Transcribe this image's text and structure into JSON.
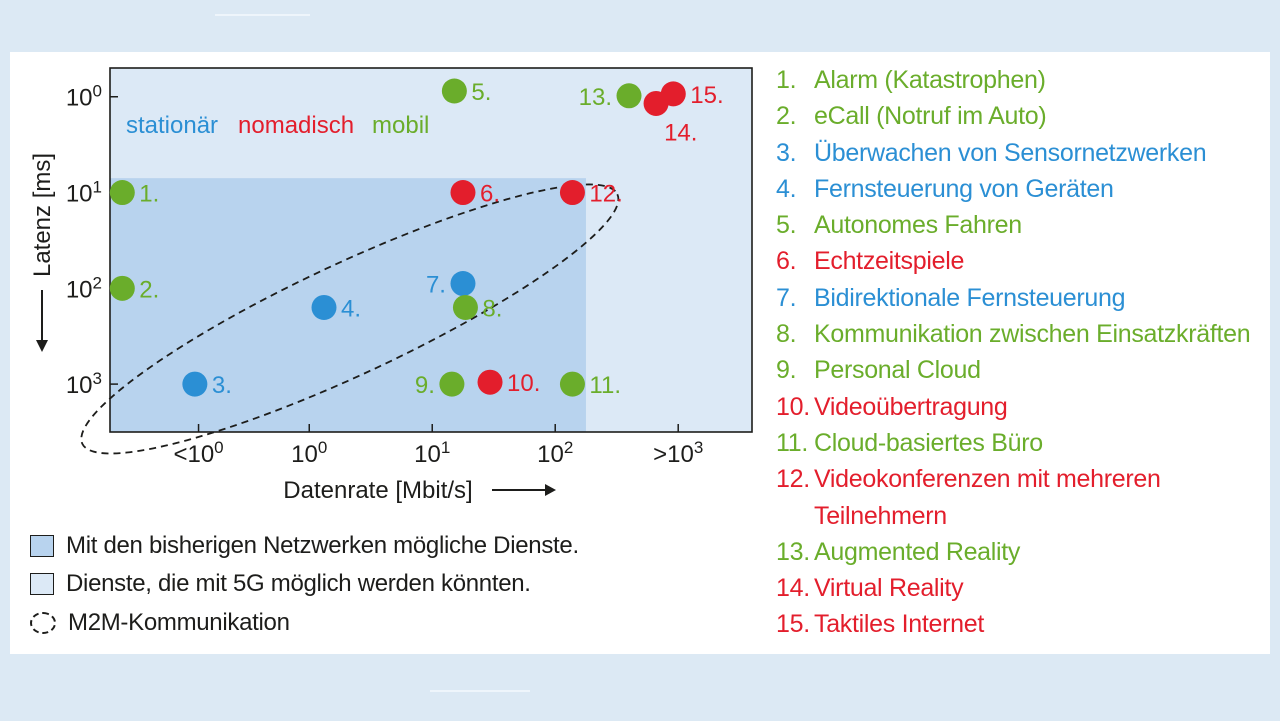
{
  "colors": {
    "stationaer": "#2b8fd4",
    "nomadisch": "#e31e2c",
    "mobil": "#6aad2b",
    "region_existing": "#b8d3ee",
    "region_5g": "#dce9f6",
    "axis": "#1d1d1b"
  },
  "categories_legend": [
    {
      "label": "stationär",
      "color_key": "stationaer"
    },
    {
      "label": "nomadisch",
      "color_key": "nomadisch"
    },
    {
      "label": "mobil",
      "color_key": "mobil"
    }
  ],
  "key": {
    "existing": "Mit den bisherigen Netzwerken mögliche Dienste.",
    "fiveg": "Dienste, die mit 5G möglich werden könnten.",
    "m2m": "M2M-Kommunikation"
  },
  "services": [
    {
      "num": "1.",
      "text": "Alarm (Katastrophen)",
      "cat": "mobil"
    },
    {
      "num": "2.",
      "text": "eCall (Notruf im Auto)",
      "cat": "mobil"
    },
    {
      "num": "3.",
      "text": "Überwachen von Sensornetzwerken",
      "cat": "stationaer"
    },
    {
      "num": "4.",
      "text": "Fernsteuerung von Geräten",
      "cat": "stationaer"
    },
    {
      "num": "5.",
      "text": "Autonomes Fahren",
      "cat": "mobil"
    },
    {
      "num": "6.",
      "text": "Echtzeitspiele",
      "cat": "nomadisch"
    },
    {
      "num": "7.",
      "text": "Bidirektionale Fernsteuerung",
      "cat": "stationaer"
    },
    {
      "num": "8.",
      "text": "Kommunikation zwischen Einsatzkräften",
      "cat": "mobil"
    },
    {
      "num": "9.",
      "text": "Personal Cloud",
      "cat": "mobil"
    },
    {
      "num": "10.",
      "text": "Videoübertragung",
      "cat": "nomadisch"
    },
    {
      "num": "11.",
      "text": "Cloud-basiertes Büro",
      "cat": "mobil"
    },
    {
      "num": "12.",
      "text": "Videokonferenzen mit mehreren",
      "cont": "Teilnehmern",
      "cat": "nomadisch"
    },
    {
      "num": "13.",
      "text": "Augmented Reality",
      "cat": "mobil"
    },
    {
      "num": "14.",
      "text": "Virtual Reality",
      "cat": "nomadisch"
    },
    {
      "num": "15.",
      "text": "Taktiles Internet",
      "cat": "nomadisch"
    }
  ],
  "chart_data": {
    "type": "scatter",
    "xlabel": "Datenrate [Mbit/s]",
    "ylabel": "Latenz [ms]",
    "x_scale": "log10",
    "y_scale": "log10",
    "xlim": [
      -1.62,
      3.6
    ],
    "ylim": [
      -0.3,
      3.5
    ],
    "x_ticks": [
      {
        "value": -0.9,
        "label_pre": "<10",
        "label_exp": "0"
      },
      {
        "value": 0,
        "label_pre": "10",
        "label_exp": "0"
      },
      {
        "value": 1,
        "label_pre": "10",
        "label_exp": "1"
      },
      {
        "value": 2,
        "label_pre": "10",
        "label_exp": "2"
      },
      {
        "value": 3,
        "label_pre": ">10",
        "label_exp": "3"
      }
    ],
    "y_ticks": [
      {
        "value": 0,
        "label_pre": "10",
        "label_exp": "0"
      },
      {
        "value": 1,
        "label_pre": "10",
        "label_exp": "1"
      },
      {
        "value": 2,
        "label_pre": "10",
        "label_exp": "2"
      },
      {
        "value": 3,
        "label_pre": "10",
        "label_exp": "3"
      }
    ],
    "regions": [
      {
        "name": "Dienste, die mit 5G möglich werden könnten.",
        "x0": -1.62,
        "x1": 3.6,
        "y0": -0.3,
        "y1": 3.5,
        "color_key": "region_5g"
      },
      {
        "name": "Mit den bisherigen Netzwerken mögliche Dienste.",
        "x0": -1.62,
        "x1": 2.25,
        "y0": 0.85,
        "y1": 3.5,
        "color_key": "region_existing"
      }
    ],
    "m2m_ellipse": {
      "cx": 0.33,
      "cy": 2.32,
      "rx_data": 2.4,
      "ry_data": 0.58,
      "angle_deg": -25
    },
    "points": [
      {
        "id": "1.",
        "x": -1.52,
        "y": 1.0,
        "cat": "mobil",
        "label_side": "right"
      },
      {
        "id": "2.",
        "x": -1.52,
        "y": 2.0,
        "cat": "mobil",
        "label_side": "right"
      },
      {
        "id": "3.",
        "x": -0.93,
        "y": 3.0,
        "cat": "stationaer",
        "label_side": "right"
      },
      {
        "id": "4.",
        "x": 0.12,
        "y": 2.2,
        "cat": "stationaer",
        "label_side": "right"
      },
      {
        "id": "5.",
        "x": 1.18,
        "y": -0.06,
        "cat": "mobil",
        "label_side": "right"
      },
      {
        "id": "6.",
        "x": 1.25,
        "y": 1.0,
        "cat": "nomadisch",
        "label_side": "right"
      },
      {
        "id": "7.",
        "x": 1.25,
        "y": 1.95,
        "cat": "stationaer",
        "label_side": "left"
      },
      {
        "id": "8.",
        "x": 1.27,
        "y": 2.2,
        "cat": "mobil",
        "label_side": "right"
      },
      {
        "id": "9.",
        "x": 1.16,
        "y": 3.0,
        "cat": "mobil",
        "label_side": "left"
      },
      {
        "id": "10.",
        "x": 1.47,
        "y": 2.98,
        "cat": "nomadisch",
        "label_side": "right"
      },
      {
        "id": "11.",
        "x": 2.14,
        "y": 3.0,
        "cat": "mobil",
        "label_side": "right"
      },
      {
        "id": "12.",
        "x": 2.14,
        "y": 1.0,
        "cat": "nomadisch",
        "label_side": "right"
      },
      {
        "id": "13.",
        "x": 2.6,
        "y": -0.01,
        "cat": "mobil",
        "label_side": "left"
      },
      {
        "id": "14.",
        "x": 2.82,
        "y": 0.07,
        "cat": "nomadisch",
        "label_side": "below"
      },
      {
        "id": "15.",
        "x": 2.96,
        "y": -0.03,
        "cat": "nomadisch",
        "label_side": "right"
      }
    ]
  }
}
